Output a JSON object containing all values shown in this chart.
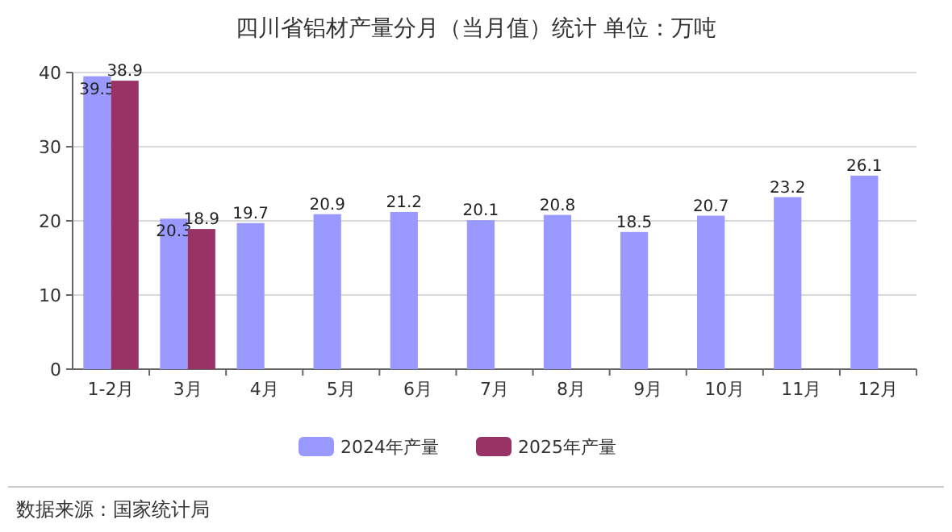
{
  "chart_data": {
    "type": "bar",
    "title": "四川省铝材产量分月（当月值）统计  单位：万吨",
    "categories": [
      "1-2月",
      "3月",
      "4月",
      "5月",
      "6月",
      "7月",
      "8月",
      "9月",
      "10月",
      "11月",
      "12月"
    ],
    "series": [
      {
        "name": "2024年产量",
        "color": "#9999ff",
        "values": [
          39.5,
          20.3,
          19.7,
          20.9,
          21.2,
          20.1,
          20.8,
          18.5,
          20.7,
          23.2,
          26.1
        ]
      },
      {
        "name": "2025年产量",
        "color": "#993366",
        "values": [
          38.9,
          18.9,
          null,
          null,
          null,
          null,
          null,
          null,
          null,
          null,
          null
        ]
      }
    ],
    "ylim": [
      0,
      40
    ],
    "yticks": [
      0,
      10,
      20,
      30,
      40
    ],
    "grid": "y",
    "legend": "bottom",
    "data_labels": true,
    "annotations": [
      "数据来源：国家统计局"
    ]
  }
}
